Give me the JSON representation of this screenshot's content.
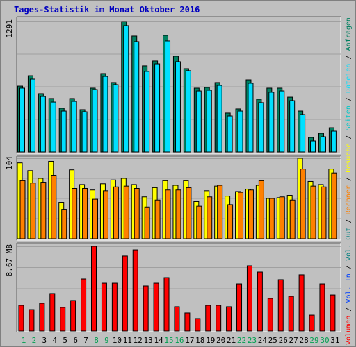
{
  "legend_separator": " / ",
  "chart_data": [
    {
      "type": "bar",
      "title": "Tages-Statistik im Monat Oktober 2016",
      "ylim": [
        0,
        1291
      ],
      "yticks": [
        1291
      ],
      "series": [
        {
          "name": "Anfragen",
          "color": "#008060",
          "values": [
            652,
            755,
            577,
            529,
            433,
            529,
            419,
            632,
            776,
            687,
            1291,
            1147,
            852,
            900,
            1154,
            948,
            824,
            632,
            639,
            687,
            385,
            426,
            714,
            522,
            632,
            632,
            542,
            405,
            144,
            185,
            240
          ]
        },
        {
          "name": "Dateien",
          "color": "#00E0FF",
          "values": [
            632,
            721,
            549,
            494,
            405,
            501,
            398,
            618,
            748,
            666,
            1250,
            1092,
            797,
            872,
            1099,
            893,
            804,
            604,
            611,
            659,
            357,
            405,
            680,
            488,
            591,
            604,
            508,
            371,
            110,
            151,
            206
          ]
        }
      ],
      "extra_legend": {
        "name": "Seiten",
        "color": "#00C8C8"
      }
    },
    {
      "type": "bar",
      "ylim": [
        0,
        104
      ],
      "yticks": [
        104
      ],
      "series": [
        {
          "name": "Besuche",
          "color": "#FFFF00",
          "values": [
            98,
            88,
            78,
            100,
            47,
            89,
            70,
            63,
            71,
            76,
            78,
            70,
            54,
            66,
            75,
            69,
            75,
            48,
            62,
            68,
            55,
            61,
            64,
            69,
            52,
            53,
            56,
            104,
            74,
            70,
            90
          ]
        },
        {
          "name": "Rechner",
          "color": "#FF8000",
          "values": [
            75,
            72,
            73,
            82,
            38,
            65,
            65,
            51,
            62,
            67,
            68,
            65,
            41,
            50,
            63,
            63,
            66,
            42,
            54,
            69,
            44,
            60,
            63,
            75,
            52,
            54,
            50,
            90,
            68,
            67,
            85
          ]
        }
      ],
      "extra_legend": {
        "name": "Vol. Out",
        "color": "#008080"
      }
    },
    {
      "type": "bar",
      "ylim": [
        0,
        8.67
      ],
      "yticks": [
        {
          "value": 8.67,
          "label": "8.67 MB"
        }
      ],
      "categories": [
        "1",
        "2",
        "3",
        "4",
        "5",
        "6",
        "7",
        "8",
        "9",
        "10",
        "11",
        "12",
        "13",
        "14",
        "15",
        "16",
        "17",
        "18",
        "19",
        "20",
        "21",
        "22",
        "23",
        "24",
        "25",
        "26",
        "27",
        "28",
        "29",
        "30",
        "31"
      ],
      "highlight_indices": [
        0,
        1,
        7,
        8,
        14,
        15,
        21,
        22,
        28,
        29
      ],
      "highlight_color": "#00A050",
      "series": [
        {
          "name": "Volumen",
          "color": "#FF0000",
          "values": [
            2.63,
            2.2,
            2.84,
            3.84,
            2.42,
            3.13,
            5.33,
            8.67,
            4.9,
            4.9,
            7.68,
            8.31,
            4.62,
            4.9,
            5.47,
            2.49,
            1.85,
            1.28,
            2.63,
            2.63,
            2.49,
            4.83,
            6.68,
            6.04,
            3.34,
            5.26,
            3.55,
            5.76,
            1.63,
            4.83,
            3.69
          ]
        }
      ],
      "extra_legend": {
        "name": "Vol. In",
        "color": "#0040FF"
      }
    }
  ]
}
